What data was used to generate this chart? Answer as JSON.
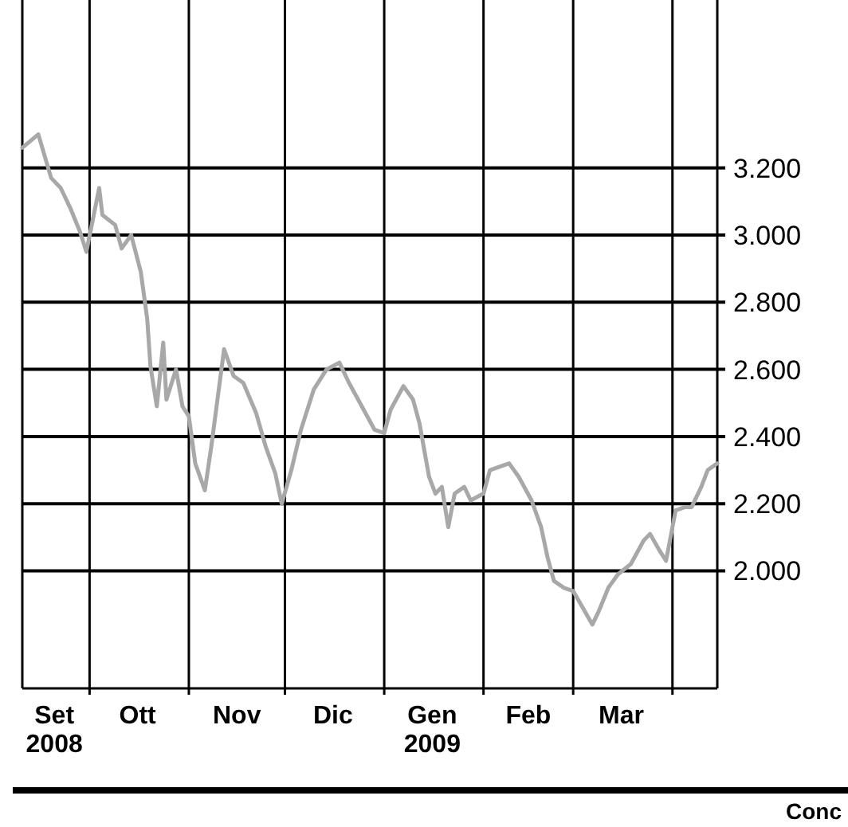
{
  "chart_data": {
    "type": "line",
    "x": [
      "2008-09-10",
      "2008-09-15",
      "2008-09-19",
      "2008-09-22",
      "2008-09-25",
      "2008-09-28",
      "2008-09-30",
      "2008-10-04",
      "2008-10-05",
      "2008-10-09",
      "2008-10-11",
      "2008-10-14",
      "2008-10-17",
      "2008-10-19",
      "2008-10-20",
      "2008-10-22",
      "2008-10-24",
      "2008-10-25",
      "2008-10-28",
      "2008-10-30",
      "2008-11-01",
      "2008-11-03",
      "2008-11-06",
      "2008-11-08",
      "2008-11-12",
      "2008-11-15",
      "2008-11-18",
      "2008-11-22",
      "2008-11-25",
      "2008-11-28",
      "2008-11-30",
      "2008-12-03",
      "2008-12-06",
      "2008-12-10",
      "2008-12-14",
      "2008-12-18",
      "2008-12-21",
      "2008-12-25",
      "2008-12-29",
      "2009-01-01",
      "2009-01-03",
      "2009-01-07",
      "2009-01-10",
      "2009-01-12",
      "2009-01-15",
      "2009-01-17",
      "2009-01-19",
      "2009-01-21",
      "2009-01-23",
      "2009-01-26",
      "2009-01-28",
      "2009-02-01",
      "2009-02-03",
      "2009-02-09",
      "2009-02-12",
      "2009-02-16",
      "2009-02-19",
      "2009-02-21",
      "2009-02-23",
      "2009-02-26",
      "2009-03-01",
      "2009-03-07",
      "2009-03-09",
      "2009-03-12",
      "2009-03-15",
      "2009-03-19",
      "2009-03-23",
      "2009-03-25",
      "2009-03-28",
      "2009-03-30",
      "2009-04-02",
      "2009-04-05",
      "2009-04-07",
      "2009-04-10",
      "2009-04-12",
      "2009-04-15"
    ],
    "series": [
      {
        "color": "#a8a8a8",
        "values": [
          3260,
          3300,
          3170,
          3140,
          3080,
          3010,
          2950,
          3140,
          3060,
          3030,
          2960,
          3000,
          2890,
          2750,
          2610,
          2490,
          2680,
          2510,
          2600,
          2490,
          2460,
          2320,
          2240,
          2370,
          2660,
          2580,
          2560,
          2470,
          2370,
          2290,
          2200,
          2300,
          2420,
          2540,
          2600,
          2620,
          2560,
          2490,
          2420,
          2410,
          2480,
          2550,
          2510,
          2440,
          2280,
          2230,
          2250,
          2130,
          2230,
          2250,
          2210,
          2230,
          2300,
          2320,
          2280,
          2210,
          2130,
          2040,
          1970,
          1950,
          1940,
          1840,
          1880,
          1950,
          1990,
          2020,
          2090,
          2110,
          2060,
          2030,
          2180,
          2190,
          2190,
          2250,
          2300,
          2320
        ]
      }
    ],
    "xlim": [
      "2008-09-10",
      "2009-04-15"
    ],
    "xticks": [
      {
        "value": "2008-09-20",
        "label": "Set\n2008"
      },
      {
        "value": "2008-10-01",
        "label": null
      },
      {
        "value": "2008-10-16",
        "label": "Ott"
      },
      {
        "value": "2008-11-01",
        "label": null
      },
      {
        "value": "2008-11-16",
        "label": "Nov"
      },
      {
        "value": "2008-12-01",
        "label": null
      },
      {
        "value": "2008-12-16",
        "label": "Dic"
      },
      {
        "value": "2009-01-01",
        "label": null
      },
      {
        "value": "2009-01-16",
        "label": "Gen\n2009"
      },
      {
        "value": "2009-02-01",
        "label": null
      },
      {
        "value": "2009-02-15",
        "label": "Feb"
      },
      {
        "value": "2009-03-01",
        "label": null
      },
      {
        "value": "2009-03-16",
        "label": "Mar"
      },
      {
        "value": "2009-04-01",
        "label": null
      }
    ],
    "ylim": [
      1650,
      3700
    ],
    "yticks": [
      {
        "value": 2000,
        "label": "2.000"
      },
      {
        "value": 2200,
        "label": "2.200"
      },
      {
        "value": 2400,
        "label": "2.400"
      },
      {
        "value": 2600,
        "label": "2.600"
      },
      {
        "value": 2800,
        "label": "2.800"
      },
      {
        "value": 3000,
        "label": "3.000"
      },
      {
        "value": 3200,
        "label": "3.200"
      }
    ],
    "grid": true,
    "annotations": [
      "Conc"
    ]
  }
}
